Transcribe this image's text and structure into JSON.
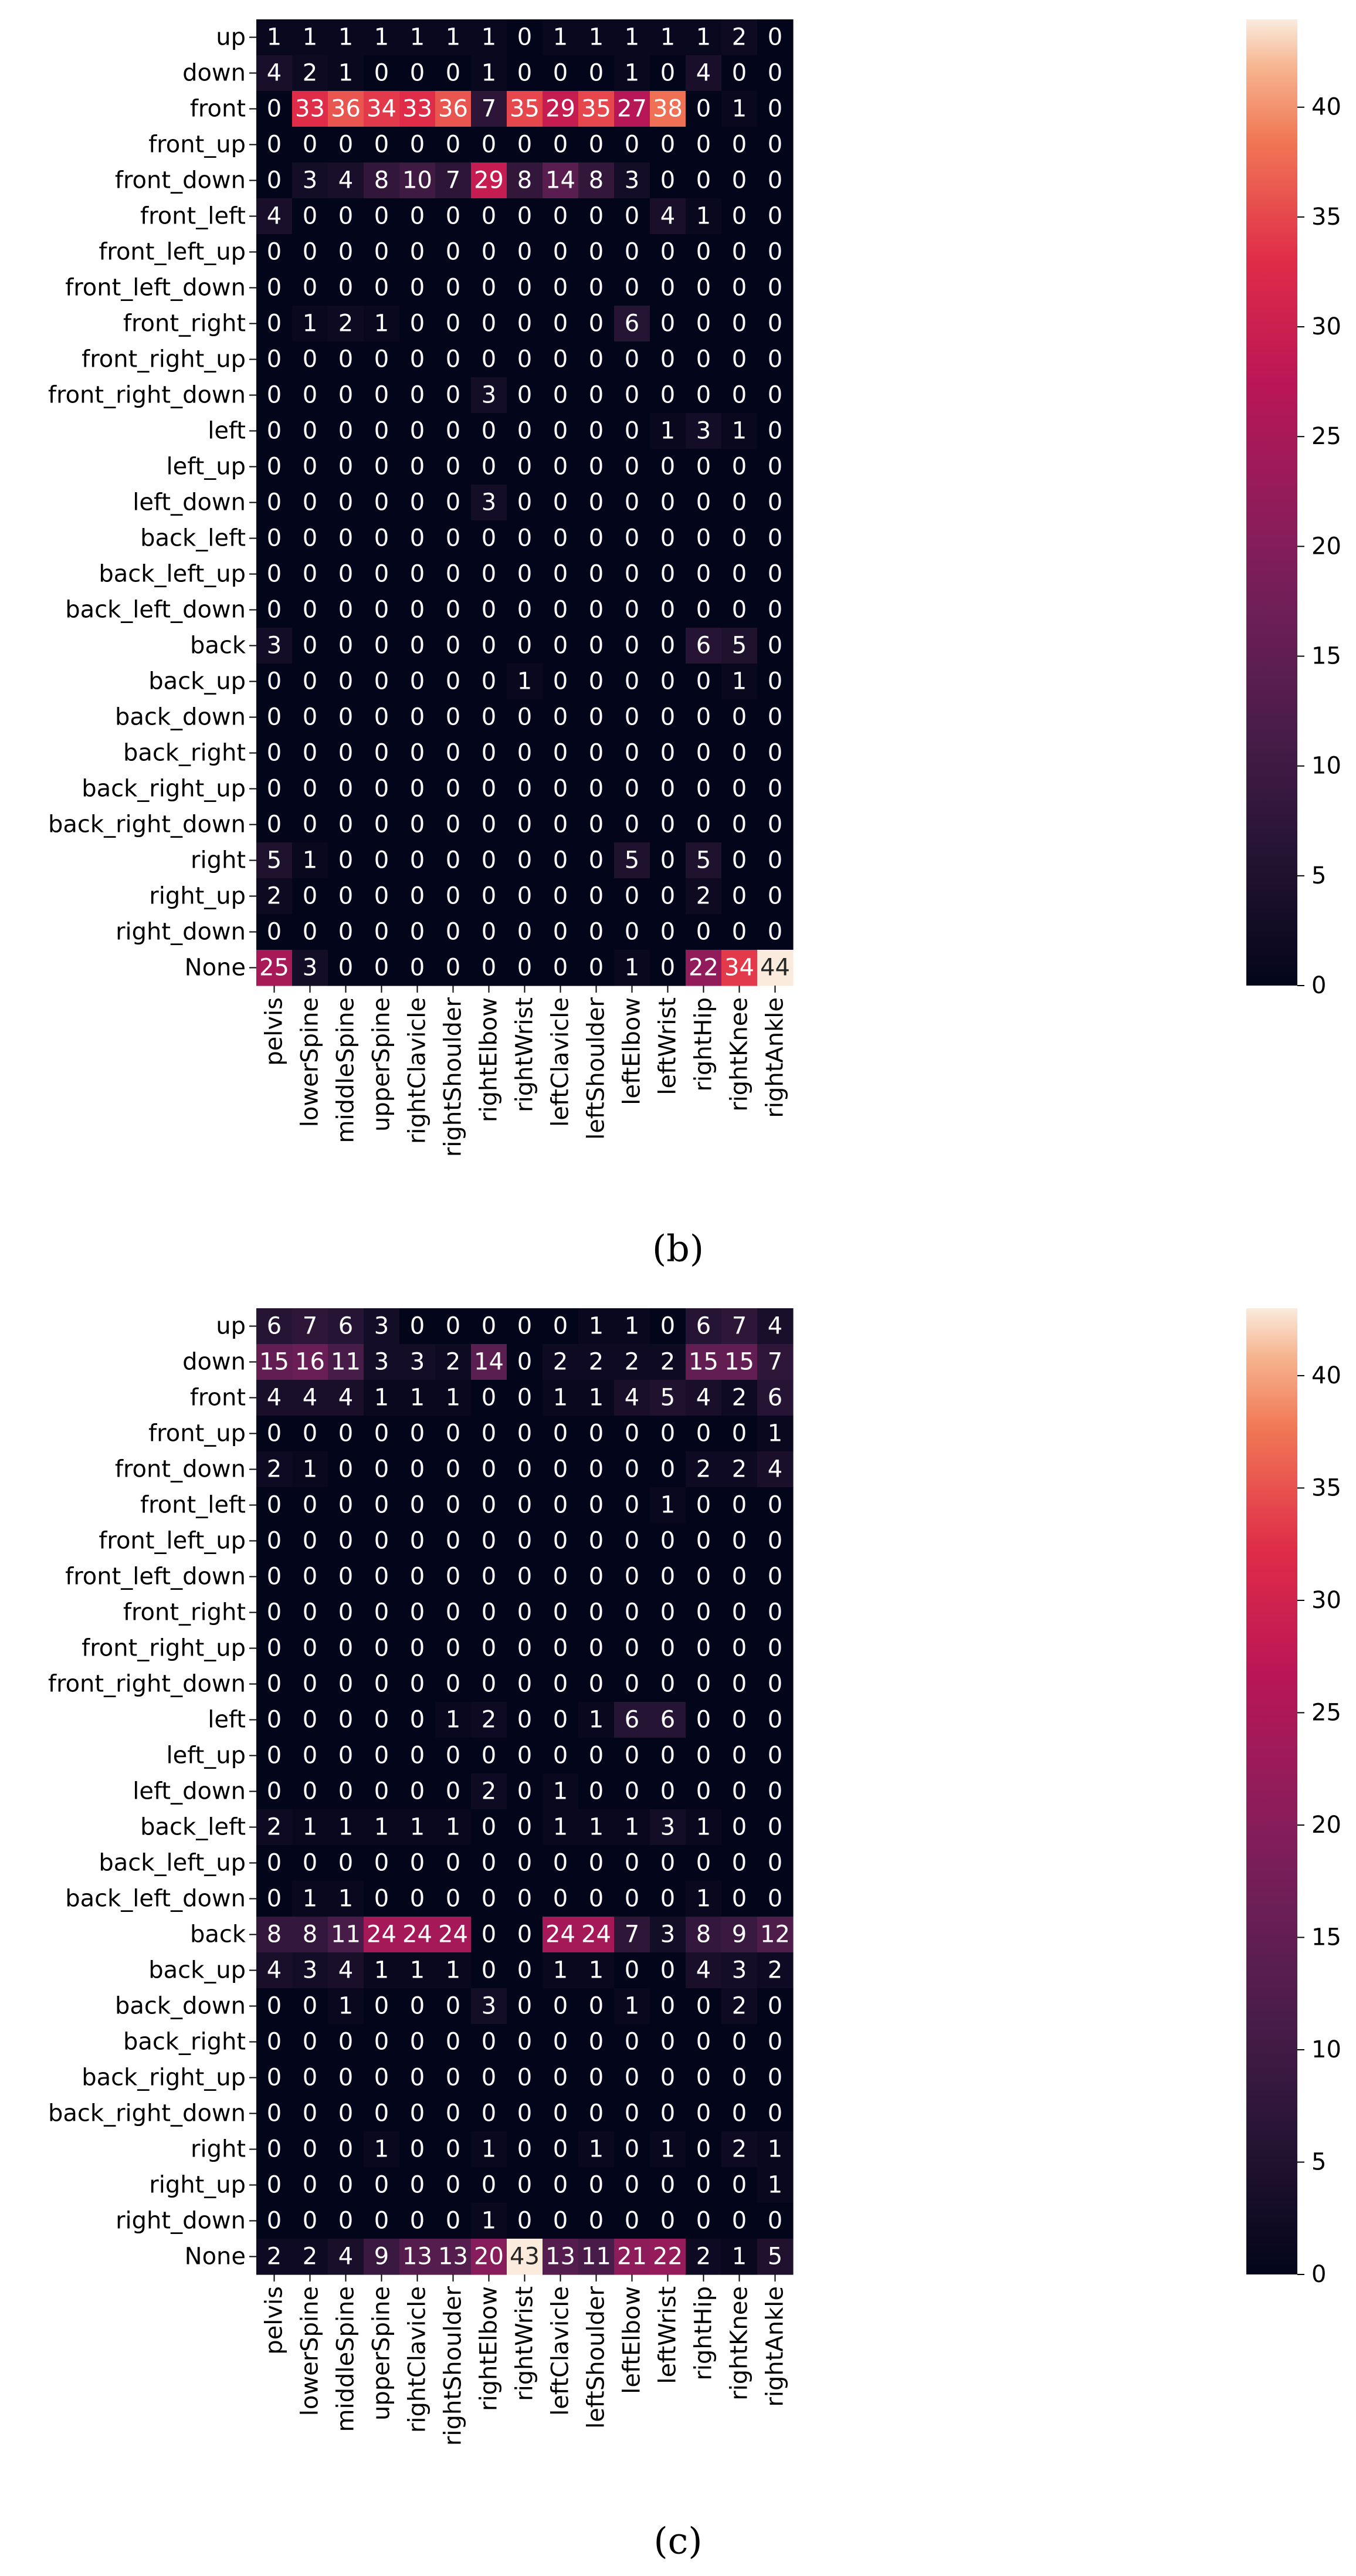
{
  "chart_data": [
    {
      "type": "heatmap",
      "caption": "(b)",
      "rows": [
        "up",
        "down",
        "front",
        "front_up",
        "front_down",
        "front_left",
        "front_left_up",
        "front_left_down",
        "front_right",
        "front_right_up",
        "front_right_down",
        "left",
        "left_up",
        "left_down",
        "back_left",
        "back_left_up",
        "back_left_down",
        "back",
        "back_up",
        "back_down",
        "back_right",
        "back_right_up",
        "back_right_down",
        "right",
        "right_up",
        "right_down",
        "None"
      ],
      "columns": [
        "pelvis",
        "lowerSpine",
        "middleSpine",
        "upperSpine",
        "rightClavicle",
        "rightShoulder",
        "rightElbow",
        "rightWrist",
        "leftClavicle",
        "leftShoulder",
        "leftElbow",
        "leftWrist",
        "rightHip",
        "rightKnee",
        "rightAnkle"
      ],
      "values": [
        [
          1,
          1,
          1,
          1,
          1,
          1,
          1,
          0,
          1,
          1,
          1,
          1,
          1,
          2,
          0
        ],
        [
          4,
          2,
          1,
          0,
          0,
          0,
          1,
          0,
          0,
          0,
          1,
          0,
          4,
          0,
          0
        ],
        [
          0,
          33,
          36,
          34,
          33,
          36,
          7,
          35,
          29,
          35,
          27,
          38,
          0,
          1,
          0
        ],
        [
          0,
          0,
          0,
          0,
          0,
          0,
          0,
          0,
          0,
          0,
          0,
          0,
          0,
          0,
          0
        ],
        [
          0,
          3,
          4,
          8,
          10,
          7,
          29,
          8,
          14,
          8,
          3,
          0,
          0,
          0,
          0
        ],
        [
          4,
          0,
          0,
          0,
          0,
          0,
          0,
          0,
          0,
          0,
          0,
          4,
          1,
          0,
          0
        ],
        [
          0,
          0,
          0,
          0,
          0,
          0,
          0,
          0,
          0,
          0,
          0,
          0,
          0,
          0,
          0
        ],
        [
          0,
          0,
          0,
          0,
          0,
          0,
          0,
          0,
          0,
          0,
          0,
          0,
          0,
          0,
          0
        ],
        [
          0,
          1,
          2,
          1,
          0,
          0,
          0,
          0,
          0,
          0,
          6,
          0,
          0,
          0,
          0
        ],
        [
          0,
          0,
          0,
          0,
          0,
          0,
          0,
          0,
          0,
          0,
          0,
          0,
          0,
          0,
          0
        ],
        [
          0,
          0,
          0,
          0,
          0,
          0,
          3,
          0,
          0,
          0,
          0,
          0,
          0,
          0,
          0
        ],
        [
          0,
          0,
          0,
          0,
          0,
          0,
          0,
          0,
          0,
          0,
          0,
          1,
          3,
          1,
          0
        ],
        [
          0,
          0,
          0,
          0,
          0,
          0,
          0,
          0,
          0,
          0,
          0,
          0,
          0,
          0,
          0
        ],
        [
          0,
          0,
          0,
          0,
          0,
          0,
          3,
          0,
          0,
          0,
          0,
          0,
          0,
          0,
          0
        ],
        [
          0,
          0,
          0,
          0,
          0,
          0,
          0,
          0,
          0,
          0,
          0,
          0,
          0,
          0,
          0
        ],
        [
          0,
          0,
          0,
          0,
          0,
          0,
          0,
          0,
          0,
          0,
          0,
          0,
          0,
          0,
          0
        ],
        [
          0,
          0,
          0,
          0,
          0,
          0,
          0,
          0,
          0,
          0,
          0,
          0,
          0,
          0,
          0
        ],
        [
          3,
          0,
          0,
          0,
          0,
          0,
          0,
          0,
          0,
          0,
          0,
          0,
          6,
          5,
          0
        ],
        [
          0,
          0,
          0,
          0,
          0,
          0,
          0,
          1,
          0,
          0,
          0,
          0,
          0,
          1,
          0
        ],
        [
          0,
          0,
          0,
          0,
          0,
          0,
          0,
          0,
          0,
          0,
          0,
          0,
          0,
          0,
          0
        ],
        [
          0,
          0,
          0,
          0,
          0,
          0,
          0,
          0,
          0,
          0,
          0,
          0,
          0,
          0,
          0
        ],
        [
          0,
          0,
          0,
          0,
          0,
          0,
          0,
          0,
          0,
          0,
          0,
          0,
          0,
          0,
          0
        ],
        [
          0,
          0,
          0,
          0,
          0,
          0,
          0,
          0,
          0,
          0,
          0,
          0,
          0,
          0,
          0
        ],
        [
          5,
          1,
          0,
          0,
          0,
          0,
          0,
          0,
          0,
          0,
          5,
          0,
          5,
          0,
          0
        ],
        [
          2,
          0,
          0,
          0,
          0,
          0,
          0,
          0,
          0,
          0,
          0,
          0,
          2,
          0,
          0
        ],
        [
          0,
          0,
          0,
          0,
          0,
          0,
          0,
          0,
          0,
          0,
          0,
          0,
          0,
          0,
          0
        ],
        [
          25,
          3,
          0,
          0,
          0,
          0,
          0,
          0,
          0,
          0,
          1,
          0,
          22,
          34,
          44
        ]
      ],
      "colorbar": {
        "range": [
          0,
          44
        ],
        "ticks": [
          0,
          5,
          10,
          15,
          20,
          25,
          30,
          35,
          40
        ]
      }
    },
    {
      "type": "heatmap",
      "caption": "(c)",
      "rows": [
        "up",
        "down",
        "front",
        "front_up",
        "front_down",
        "front_left",
        "front_left_up",
        "front_left_down",
        "front_right",
        "front_right_up",
        "front_right_down",
        "left",
        "left_up",
        "left_down",
        "back_left",
        "back_left_up",
        "back_left_down",
        "back",
        "back_up",
        "back_down",
        "back_right",
        "back_right_up",
        "back_right_down",
        "right",
        "right_up",
        "right_down",
        "None"
      ],
      "columns": [
        "pelvis",
        "lowerSpine",
        "middleSpine",
        "upperSpine",
        "rightClavicle",
        "rightShoulder",
        "rightElbow",
        "rightWrist",
        "leftClavicle",
        "leftShoulder",
        "leftElbow",
        "leftWrist",
        "rightHip",
        "rightKnee",
        "rightAnkle"
      ],
      "values": [
        [
          6,
          7,
          6,
          3,
          0,
          0,
          0,
          0,
          0,
          1,
          1,
          0,
          6,
          7,
          4
        ],
        [
          15,
          16,
          11,
          3,
          3,
          2,
          14,
          0,
          2,
          2,
          2,
          2,
          15,
          15,
          7
        ],
        [
          4,
          4,
          4,
          1,
          1,
          1,
          0,
          0,
          1,
          1,
          4,
          5,
          4,
          2,
          6
        ],
        [
          0,
          0,
          0,
          0,
          0,
          0,
          0,
          0,
          0,
          0,
          0,
          0,
          0,
          0,
          1
        ],
        [
          2,
          1,
          0,
          0,
          0,
          0,
          0,
          0,
          0,
          0,
          0,
          0,
          2,
          2,
          4
        ],
        [
          0,
          0,
          0,
          0,
          0,
          0,
          0,
          0,
          0,
          0,
          0,
          1,
          0,
          0,
          0
        ],
        [
          0,
          0,
          0,
          0,
          0,
          0,
          0,
          0,
          0,
          0,
          0,
          0,
          0,
          0,
          0
        ],
        [
          0,
          0,
          0,
          0,
          0,
          0,
          0,
          0,
          0,
          0,
          0,
          0,
          0,
          0,
          0
        ],
        [
          0,
          0,
          0,
          0,
          0,
          0,
          0,
          0,
          0,
          0,
          0,
          0,
          0,
          0,
          0
        ],
        [
          0,
          0,
          0,
          0,
          0,
          0,
          0,
          0,
          0,
          0,
          0,
          0,
          0,
          0,
          0
        ],
        [
          0,
          0,
          0,
          0,
          0,
          0,
          0,
          0,
          0,
          0,
          0,
          0,
          0,
          0,
          0
        ],
        [
          0,
          0,
          0,
          0,
          0,
          1,
          2,
          0,
          0,
          1,
          6,
          6,
          0,
          0,
          0
        ],
        [
          0,
          0,
          0,
          0,
          0,
          0,
          0,
          0,
          0,
          0,
          0,
          0,
          0,
          0,
          0
        ],
        [
          0,
          0,
          0,
          0,
          0,
          0,
          2,
          0,
          1,
          0,
          0,
          0,
          0,
          0,
          0
        ],
        [
          2,
          1,
          1,
          1,
          1,
          1,
          0,
          0,
          1,
          1,
          1,
          3,
          1,
          0,
          0
        ],
        [
          0,
          0,
          0,
          0,
          0,
          0,
          0,
          0,
          0,
          0,
          0,
          0,
          0,
          0,
          0
        ],
        [
          0,
          1,
          1,
          0,
          0,
          0,
          0,
          0,
          0,
          0,
          0,
          0,
          1,
          0,
          0
        ],
        [
          8,
          8,
          11,
          24,
          24,
          24,
          0,
          0,
          24,
          24,
          7,
          3,
          8,
          9,
          12
        ],
        [
          4,
          3,
          4,
          1,
          1,
          1,
          0,
          0,
          1,
          1,
          0,
          0,
          4,
          3,
          2
        ],
        [
          0,
          0,
          1,
          0,
          0,
          0,
          3,
          0,
          0,
          0,
          1,
          0,
          0,
          2,
          0
        ],
        [
          0,
          0,
          0,
          0,
          0,
          0,
          0,
          0,
          0,
          0,
          0,
          0,
          0,
          0,
          0
        ],
        [
          0,
          0,
          0,
          0,
          0,
          0,
          0,
          0,
          0,
          0,
          0,
          0,
          0,
          0,
          0
        ],
        [
          0,
          0,
          0,
          0,
          0,
          0,
          0,
          0,
          0,
          0,
          0,
          0,
          0,
          0,
          0
        ],
        [
          0,
          0,
          0,
          1,
          0,
          0,
          1,
          0,
          0,
          1,
          0,
          1,
          0,
          2,
          1
        ],
        [
          0,
          0,
          0,
          0,
          0,
          0,
          0,
          0,
          0,
          0,
          0,
          0,
          0,
          0,
          1
        ],
        [
          0,
          0,
          0,
          0,
          0,
          0,
          1,
          0,
          0,
          0,
          0,
          0,
          0,
          0,
          0
        ],
        [
          2,
          2,
          4,
          9,
          13,
          13,
          20,
          43,
          13,
          11,
          21,
          22,
          2,
          1,
          5
        ]
      ],
      "colorbar": {
        "range": [
          0,
          43
        ],
        "ticks": [
          0,
          5,
          10,
          15,
          20,
          25,
          30,
          35,
          40
        ]
      }
    }
  ]
}
